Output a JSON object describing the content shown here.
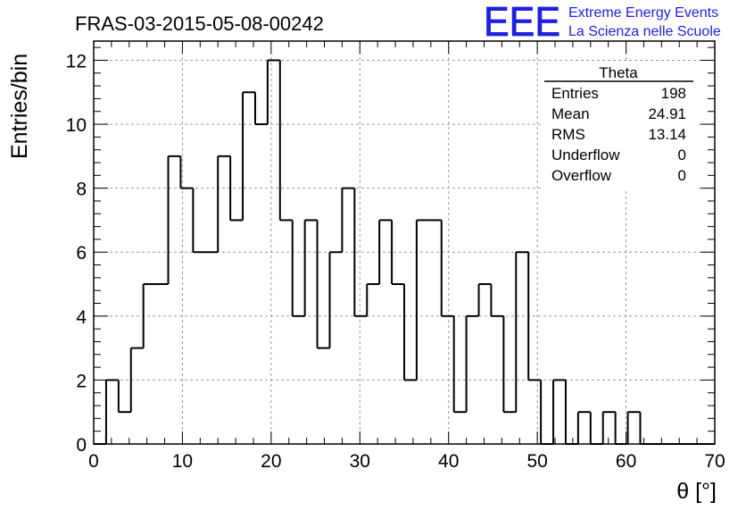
{
  "chart_data": {
    "type": "bar",
    "title": "FRAS-03-2015-05-08-00242",
    "xlabel": "θ [°]",
    "ylabel": "Entries/bin",
    "xlim": [
      0,
      70
    ],
    "ylim": [
      0,
      12.6
    ],
    "grid": true,
    "bin_width": 1.4,
    "x_ticks": [
      0,
      10,
      20,
      30,
      40,
      50,
      60,
      70
    ],
    "y_ticks": [
      0,
      2,
      4,
      6,
      8,
      10,
      12
    ],
    "bin_edges_start": 0,
    "values": [
      0,
      2,
      1,
      3,
      5,
      5,
      9,
      8,
      6,
      6,
      9,
      7,
      11,
      10,
      12,
      7,
      4,
      7,
      3,
      6,
      8,
      4,
      5,
      7,
      5,
      2,
      7,
      7,
      4,
      1,
      4,
      5,
      4,
      1,
      6,
      2,
      0,
      2,
      0,
      1,
      0,
      1,
      0,
      1,
      0,
      0,
      0,
      0,
      0,
      0
    ]
  },
  "stats_box": {
    "name": "Theta",
    "rows": [
      {
        "label": "Entries",
        "value": "198"
      },
      {
        "label": "Mean",
        "value": "24.91"
      },
      {
        "label": "RMS",
        "value": "13.14"
      },
      {
        "label": "Underflow",
        "value": "0"
      },
      {
        "label": "Overflow",
        "value": "0"
      }
    ]
  },
  "logo": {
    "text": "EEE",
    "line1": "Extreme Energy Events",
    "line2": "La Scienza nelle Scuole",
    "color": "#1f1fe0"
  }
}
